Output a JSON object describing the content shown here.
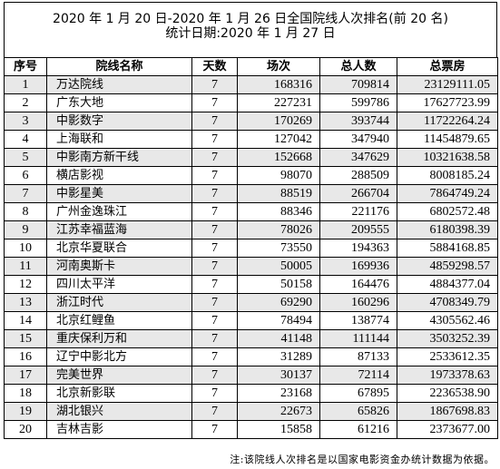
{
  "title": {
    "line1": "2020 年 1 月 20 日-2020 年 1 月 26 日全国院线人次排名(前 20 名)",
    "line2": "统计日期:2020 年 1 月 27 日"
  },
  "table": {
    "headers": [
      "序号",
      "院线名称",
      "天数",
      "场次",
      "总人数",
      "总票房"
    ],
    "rows": [
      [
        "1",
        "万达院线",
        "7",
        "168316",
        "709814",
        "23129111.05"
      ],
      [
        "2",
        "广东大地",
        "7",
        "227231",
        "599786",
        "17627723.99"
      ],
      [
        "3",
        "中影数字",
        "7",
        "170269",
        "393744",
        "11722264.24"
      ],
      [
        "4",
        "上海联和",
        "7",
        "127042",
        "347940",
        "11454879.65"
      ],
      [
        "5",
        "中影南方新干线",
        "7",
        "152668",
        "347629",
        "10321638.58"
      ],
      [
        "6",
        "横店影视",
        "7",
        "98070",
        "288509",
        "8008185.24"
      ],
      [
        "7",
        "中影星美",
        "7",
        "88519",
        "266704",
        "7864749.24"
      ],
      [
        "8",
        "广州金逸珠江",
        "7",
        "88346",
        "221176",
        "6802572.48"
      ],
      [
        "9",
        "江苏幸福蓝海",
        "7",
        "78026",
        "209555",
        "6180398.39"
      ],
      [
        "10",
        "北京华夏联合",
        "7",
        "73550",
        "194363",
        "5884168.85"
      ],
      [
        "11",
        "河南奥斯卡",
        "7",
        "50005",
        "169936",
        "4859298.57"
      ],
      [
        "12",
        "四川太平洋",
        "7",
        "50158",
        "164476",
        "4884377.04"
      ],
      [
        "13",
        "浙江时代",
        "7",
        "69290",
        "160296",
        "4708349.79"
      ],
      [
        "14",
        "北京红鲤鱼",
        "7",
        "78494",
        "138774",
        "4305562.46"
      ],
      [
        "15",
        "重庆保利万和",
        "7",
        "41148",
        "111144",
        "3503252.39"
      ],
      [
        "16",
        "辽宁中影北方",
        "7",
        "31289",
        "87133",
        "2533612.35"
      ],
      [
        "17",
        "完美世界",
        "7",
        "30137",
        "72114",
        "1973378.63"
      ],
      [
        "18",
        "北京新影联",
        "7",
        "23168",
        "67895",
        "2236538.90"
      ],
      [
        "19",
        "湖北银兴",
        "7",
        "22673",
        "65826",
        "1867698.83"
      ],
      [
        "20",
        "吉林吉影",
        "7",
        "15858",
        "61216",
        "2373677.00"
      ]
    ]
  },
  "note": "注:该院线人次排名是以国家电影资金办统计数据为依据。",
  "colors": {
    "shade": "#e8e8e8",
    "border": "#000000"
  }
}
